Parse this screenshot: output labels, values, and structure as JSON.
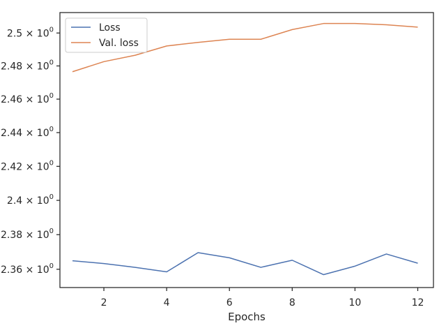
{
  "chart_data": {
    "type": "line",
    "xlabel": "Epochs",
    "ylabel": "",
    "title": "",
    "x": [
      1,
      2,
      3,
      4,
      5,
      6,
      7,
      8,
      9,
      10,
      11,
      12
    ],
    "xlim": [
      0.6,
      12.5
    ],
    "ylim": [
      2.3495,
      2.5125
    ],
    "yscale": "log",
    "x_ticks": [
      2,
      4,
      6,
      8,
      10,
      12
    ],
    "y_ticks": [
      {
        "value": 2.36,
        "mantissa": "2.36",
        "exp": "0"
      },
      {
        "value": 2.38,
        "mantissa": "2.38",
        "exp": "0"
      },
      {
        "value": 2.4,
        "mantissa": "2.4",
        "exp": "0"
      },
      {
        "value": 2.42,
        "mantissa": "2.42",
        "exp": "0"
      },
      {
        "value": 2.44,
        "mantissa": "2.44",
        "exp": "0"
      },
      {
        "value": 2.46,
        "mantissa": "2.46",
        "exp": "0"
      },
      {
        "value": 2.48,
        "mantissa": "2.48",
        "exp": "0"
      },
      {
        "value": 2.5,
        "mantissa": "2.5",
        "exp": "0"
      }
    ],
    "legend_position": "top-left",
    "grid": false,
    "series": [
      {
        "name": "Loss",
        "color": "#4c72b0",
        "values": [
          2.3649,
          2.3633,
          2.3611,
          2.3585,
          2.3696,
          2.3666,
          2.3611,
          2.3652,
          2.3569,
          2.3618,
          2.3688,
          2.3635
        ]
      },
      {
        "name": "Val. loss",
        "color": "#dd8452",
        "values": [
          2.4765,
          2.4826,
          2.4865,
          2.4921,
          2.4943,
          2.4962,
          2.4962,
          2.5021,
          2.5058,
          2.5058,
          2.505,
          2.5036
        ]
      }
    ]
  }
}
